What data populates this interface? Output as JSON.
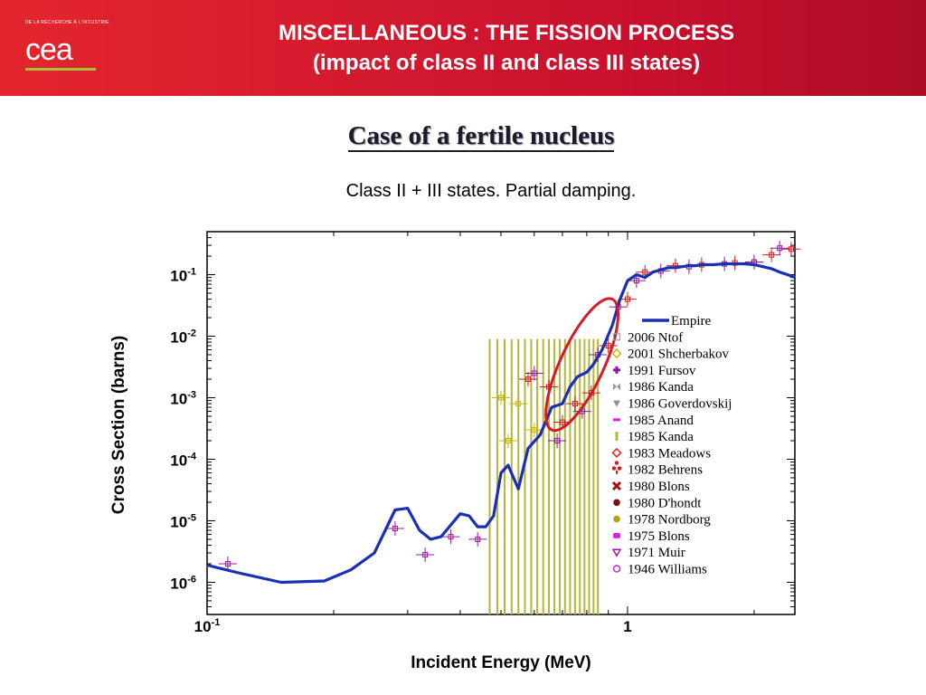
{
  "header": {
    "org_line": "DE LA RECHERCHE À L'INDUSTRIE",
    "logo_text": "cea",
    "title_line1": "MISCELLANEOUS : THE FISSION PROCESS",
    "title_line2": "(impact of class II and class III states)"
  },
  "slide": {
    "section_title": "Case of a fertile nucleus",
    "subtitle": "Class II + III states. Partial damping."
  },
  "colors": {
    "header_red": "#d7152a",
    "empire_line": "#1a2fb4",
    "highlight_ellipse": "#d21a2a",
    "kanda_1985_bars": "#b5b53a"
  },
  "chart_data": {
    "type": "scatter",
    "title": "",
    "xlabel": "Incident Energy (MeV)",
    "ylabel": "Cross Section (barns)",
    "x_scale": "log",
    "y_scale": "log",
    "xlim": [
      0.1,
      2.5
    ],
    "ylim": [
      3e-07,
      0.5
    ],
    "x_ticks": [
      {
        "value": 0.1,
        "base": "10",
        "exp": "-1"
      },
      {
        "value": 1,
        "base": "1",
        "exp": ""
      }
    ],
    "y_ticks": [
      {
        "value": 0.1,
        "base": "10",
        "exp": "-1"
      },
      {
        "value": 0.01,
        "base": "10",
        "exp": "-2"
      },
      {
        "value": 0.001,
        "base": "10",
        "exp": "-3"
      },
      {
        "value": 0.0001,
        "base": "10",
        "exp": "-4"
      },
      {
        "value": 1e-05,
        "base": "10",
        "exp": "-5"
      },
      {
        "value": 1e-06,
        "base": "10",
        "exp": "-6"
      }
    ],
    "legend_position": "right",
    "legend": [
      {
        "name": "Empire",
        "marker": "line",
        "color": "#1a2fb4"
      },
      {
        "name": "2006 Ntof",
        "marker": "square-open",
        "color": "#a0a0a0"
      },
      {
        "name": "2001 Shcherbakov",
        "marker": "diamond-open",
        "color": "#c8b400"
      },
      {
        "name": "1991 Fursov",
        "marker": "plus",
        "color": "#8b1a9c"
      },
      {
        "name": "1986 Kanda",
        "marker": "bowtie",
        "color": "#9a9aaa"
      },
      {
        "name": "1986 Goverdovskij",
        "marker": "triangle-down",
        "color": "#909090"
      },
      {
        "name": "1985 Anand",
        "marker": "dash",
        "color": "#e020e0"
      },
      {
        "name": "1985 Kanda",
        "marker": "bar",
        "color": "#b5b53a"
      },
      {
        "name": "1983 Meadows",
        "marker": "diamond-open",
        "color": "#e0231f"
      },
      {
        "name": "1982 Behrens",
        "marker": "club",
        "color": "#d21a1a"
      },
      {
        "name": "1980 Blons",
        "marker": "x-filled",
        "color": "#a01010"
      },
      {
        "name": "1980 D'hondt",
        "marker": "circle",
        "color": "#7a0f0f"
      },
      {
        "name": "1978 Nordborg",
        "marker": "circle",
        "color": "#b8a020"
      },
      {
        "name": "1975 Blons",
        "marker": "square-round",
        "color": "#e020e0"
      },
      {
        "name": "1971 Muir",
        "marker": "triangle-down-open",
        "color": "#9a1a9a"
      },
      {
        "name": "1946 Williams",
        "marker": "circle-open",
        "color": "#c030c0"
      }
    ],
    "series": [
      {
        "name": "Empire",
        "x": [
          0.1,
          0.12,
          0.15,
          0.19,
          0.22,
          0.25,
          0.28,
          0.3,
          0.32,
          0.34,
          0.36,
          0.4,
          0.42,
          0.44,
          0.46,
          0.48,
          0.5,
          0.52,
          0.55,
          0.58,
          0.62,
          0.66,
          0.7,
          0.73,
          0.76,
          0.8,
          0.83,
          0.87,
          0.92,
          0.96,
          1.0,
          1.05,
          1.1,
          1.15,
          1.2,
          1.25,
          1.3,
          1.35,
          1.4,
          1.45,
          1.5,
          1.6,
          1.7,
          1.8,
          1.9,
          2.0,
          2.1,
          2.2,
          2.3,
          2.4,
          2.5
        ],
        "y": [
          1.9e-06,
          1.4e-06,
          1e-06,
          1.05e-06,
          1.6e-06,
          3e-06,
          1.5e-05,
          1.6e-05,
          7e-06,
          5e-06,
          5.5e-06,
          1.3e-05,
          1.2e-05,
          8e-06,
          8e-06,
          1.2e-05,
          6e-05,
          8e-05,
          3.3e-05,
          0.00015,
          0.00025,
          0.0007,
          0.0008,
          0.0015,
          0.0022,
          0.0026,
          0.0035,
          0.006,
          0.015,
          0.04,
          0.08,
          0.1,
          0.09,
          0.11,
          0.12,
          0.13,
          0.13,
          0.135,
          0.14,
          0.14,
          0.145,
          0.145,
          0.15,
          0.15,
          0.15,
          0.145,
          0.135,
          0.125,
          0.11,
          0.1,
          0.09
        ]
      }
    ],
    "measurements": [
      {
        "name": "1971 Muir",
        "points": [
          {
            "x": 0.112,
            "y": 2e-06
          },
          {
            "x": 0.28,
            "y": 7.5e-06
          },
          {
            "x": 0.33,
            "y": 2.8e-06
          },
          {
            "x": 0.38,
            "y": 5.5e-06
          },
          {
            "x": 0.44,
            "y": 5e-06
          }
        ]
      },
      {
        "name": "2001 Shcherbakov",
        "points": [
          {
            "x": 0.5,
            "y": 0.001
          },
          {
            "x": 0.52,
            "y": 0.0002
          },
          {
            "x": 0.55,
            "y": 0.0008
          },
          {
            "x": 0.6,
            "y": 0.0003
          }
        ]
      },
      {
        "name": "1982 Behrens",
        "points": [
          {
            "x": 0.58,
            "y": 0.002
          },
          {
            "x": 0.65,
            "y": 0.0015
          },
          {
            "x": 0.7,
            "y": 0.0004
          },
          {
            "x": 0.75,
            "y": 0.0008
          },
          {
            "x": 0.82,
            "y": 0.0012
          },
          {
            "x": 0.9,
            "y": 0.007
          },
          {
            "x": 1.0,
            "y": 0.04
          },
          {
            "x": 1.1,
            "y": 0.11
          },
          {
            "x": 1.3,
            "y": 0.14
          },
          {
            "x": 1.5,
            "y": 0.145
          },
          {
            "x": 1.8,
            "y": 0.155
          },
          {
            "x": 2.0,
            "y": 0.16
          },
          {
            "x": 2.2,
            "y": 0.21
          },
          {
            "x": 2.45,
            "y": 0.26
          }
        ]
      },
      {
        "name": "1991 Fursov",
        "points": [
          {
            "x": 0.6,
            "y": 0.0025
          },
          {
            "x": 0.68,
            "y": 0.0002
          },
          {
            "x": 0.78,
            "y": 0.0006
          },
          {
            "x": 0.85,
            "y": 0.005
          },
          {
            "x": 0.95,
            "y": 0.03
          },
          {
            "x": 1.05,
            "y": 0.08
          },
          {
            "x": 1.2,
            "y": 0.115
          },
          {
            "x": 1.4,
            "y": 0.135
          },
          {
            "x": 1.7,
            "y": 0.15
          },
          {
            "x": 2.0,
            "y": 0.16
          },
          {
            "x": 2.3,
            "y": 0.27
          }
        ]
      },
      {
        "name": "1985 Kanda",
        "bars": [
          0.47,
          0.49,
          0.51,
          0.53,
          0.55,
          0.57,
          0.59,
          0.61,
          0.63,
          0.65,
          0.67,
          0.69,
          0.71,
          0.73,
          0.75,
          0.77,
          0.79,
          0.81,
          0.83,
          0.85
        ],
        "y_top": 0.009,
        "y_bottom": 3e-07
      }
    ],
    "annotations": [
      {
        "type": "ellipse",
        "color": "#d21a2a",
        "x_range": [
          0.66,
          0.92
        ],
        "y_range": [
          0.0003,
          0.04
        ]
      }
    ]
  }
}
